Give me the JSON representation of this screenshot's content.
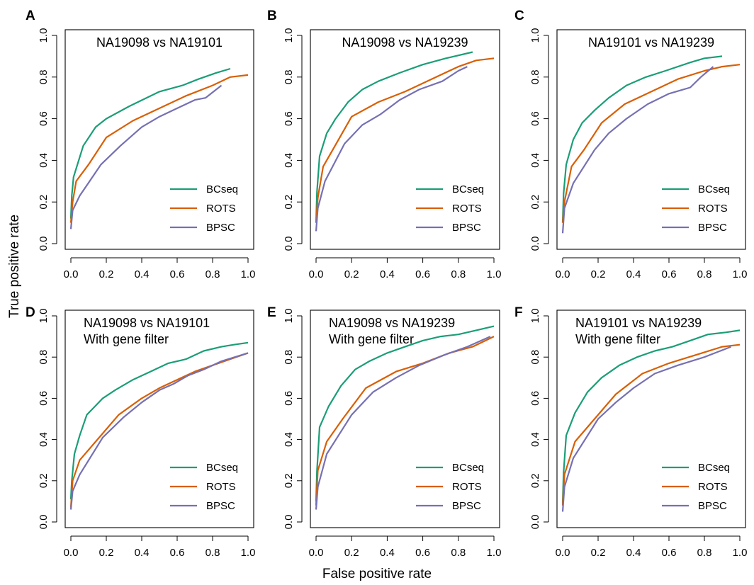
{
  "figure": {
    "xlabel": "False positive rate",
    "ylabel": "True positive rate"
  },
  "colors": {
    "BCseq": "#1b9e77",
    "ROTS": "#d95f02",
    "BPSC": "#7570b3"
  },
  "chart_data": [
    {
      "type": "line",
      "panel": "A",
      "title": [
        "NA19098 vs NA19101"
      ],
      "xlim": [
        0,
        1
      ],
      "ylim": [
        0,
        1
      ],
      "xticks": [
        "0.0",
        "0.2",
        "0.4",
        "0.6",
        "0.8",
        "1.0"
      ],
      "yticks": [
        "0.0",
        "0.2",
        "0.4",
        "0.6",
        "0.8",
        "1.0"
      ],
      "legend_position": "bottom-right",
      "series": [
        {
          "name": "BCseq",
          "x": [
            0,
            0.005,
            0.015,
            0.07,
            0.14,
            0.2,
            0.33,
            0.5,
            0.63,
            0.72,
            0.82,
            0.9
          ],
          "y": [
            0.12,
            0.23,
            0.32,
            0.47,
            0.56,
            0.6,
            0.66,
            0.73,
            0.76,
            0.79,
            0.82,
            0.84
          ]
        },
        {
          "name": "ROTS",
          "x": [
            0,
            0.01,
            0.03,
            0.1,
            0.2,
            0.35,
            0.5,
            0.65,
            0.8,
            0.9,
            1.0
          ],
          "y": [
            0.1,
            0.2,
            0.3,
            0.38,
            0.51,
            0.59,
            0.65,
            0.71,
            0.76,
            0.8,
            0.81
          ]
        },
        {
          "name": "BPSC",
          "x": [
            0,
            0.01,
            0.05,
            0.17,
            0.28,
            0.4,
            0.5,
            0.6,
            0.7,
            0.76,
            0.85
          ],
          "y": [
            0.07,
            0.16,
            0.23,
            0.38,
            0.47,
            0.56,
            0.61,
            0.65,
            0.69,
            0.7,
            0.76
          ]
        }
      ]
    },
    {
      "type": "line",
      "panel": "B",
      "title": [
        "NA19098 vs NA19239"
      ],
      "xlim": [
        0,
        1
      ],
      "ylim": [
        0,
        1
      ],
      "xticks": [
        "0.0",
        "0.2",
        "0.4",
        "0.6",
        "0.8",
        "1.0"
      ],
      "yticks": [
        "0.0",
        "0.2",
        "0.4",
        "0.6",
        "0.8",
        "1.0"
      ],
      "legend_position": "bottom-right",
      "series": [
        {
          "name": "BCseq",
          "x": [
            0,
            0.005,
            0.02,
            0.06,
            0.11,
            0.18,
            0.26,
            0.35,
            0.47,
            0.6,
            0.73,
            0.88
          ],
          "y": [
            0.1,
            0.25,
            0.42,
            0.53,
            0.6,
            0.68,
            0.74,
            0.78,
            0.82,
            0.86,
            0.89,
            0.92
          ]
        },
        {
          "name": "ROTS",
          "x": [
            0,
            0.01,
            0.04,
            0.1,
            0.2,
            0.35,
            0.5,
            0.65,
            0.8,
            0.9,
            1.0
          ],
          "y": [
            0.1,
            0.22,
            0.37,
            0.46,
            0.61,
            0.68,
            0.73,
            0.79,
            0.85,
            0.88,
            0.89
          ]
        },
        {
          "name": "BPSC",
          "x": [
            0,
            0.01,
            0.05,
            0.16,
            0.26,
            0.36,
            0.47,
            0.58,
            0.71,
            0.8,
            0.85
          ],
          "y": [
            0.06,
            0.17,
            0.3,
            0.48,
            0.57,
            0.62,
            0.69,
            0.74,
            0.78,
            0.83,
            0.85
          ]
        }
      ]
    },
    {
      "type": "line",
      "panel": "C",
      "title": [
        "NA19101 vs NA19239"
      ],
      "xlim": [
        0,
        1
      ],
      "ylim": [
        0,
        1
      ],
      "xticks": [
        "0.0",
        "0.2",
        "0.4",
        "0.6",
        "0.8",
        "1.0"
      ],
      "yticks": [
        "0.0",
        "0.2",
        "0.4",
        "0.6",
        "0.8",
        "1.0"
      ],
      "legend_position": "bottom-right",
      "series": [
        {
          "name": "BCseq",
          "x": [
            0,
            0.005,
            0.02,
            0.06,
            0.11,
            0.18,
            0.26,
            0.36,
            0.47,
            0.58,
            0.72,
            0.8,
            0.9
          ],
          "y": [
            0.1,
            0.24,
            0.38,
            0.5,
            0.58,
            0.64,
            0.7,
            0.76,
            0.8,
            0.83,
            0.87,
            0.89,
            0.9
          ]
        },
        {
          "name": "ROTS",
          "x": [
            0,
            0.01,
            0.05,
            0.12,
            0.22,
            0.35,
            0.5,
            0.65,
            0.8,
            0.9,
            1.0
          ],
          "y": [
            0.1,
            0.2,
            0.37,
            0.45,
            0.58,
            0.67,
            0.73,
            0.79,
            0.83,
            0.85,
            0.86
          ]
        },
        {
          "name": "BPSC",
          "x": [
            0,
            0.01,
            0.06,
            0.18,
            0.26,
            0.36,
            0.48,
            0.6,
            0.72,
            0.78,
            0.85
          ],
          "y": [
            0.05,
            0.17,
            0.29,
            0.45,
            0.53,
            0.6,
            0.67,
            0.72,
            0.75,
            0.8,
            0.85
          ]
        }
      ]
    },
    {
      "type": "line",
      "panel": "D",
      "title": [
        "NA19098 vs NA19101",
        "With gene filter"
      ],
      "xlim": [
        0,
        1
      ],
      "ylim": [
        0,
        1
      ],
      "xticks": [
        "0.0",
        "0.2",
        "0.4",
        "0.6",
        "0.8",
        "1.0"
      ],
      "yticks": [
        "0.0",
        "0.2",
        "0.4",
        "0.6",
        "0.8",
        "1.0"
      ],
      "legend_position": "bottom-right",
      "series": [
        {
          "name": "BCseq",
          "x": [
            0,
            0.005,
            0.02,
            0.05,
            0.09,
            0.18,
            0.25,
            0.35,
            0.45,
            0.55,
            0.65,
            0.75,
            0.85,
            0.92,
            1.0
          ],
          "y": [
            0.11,
            0.2,
            0.33,
            0.42,
            0.52,
            0.6,
            0.64,
            0.69,
            0.73,
            0.77,
            0.79,
            0.83,
            0.85,
            0.86,
            0.87
          ]
        },
        {
          "name": "ROTS",
          "x": [
            0,
            0.01,
            0.05,
            0.15,
            0.27,
            0.4,
            0.5,
            0.6,
            0.7,
            0.8,
            0.9,
            1.0
          ],
          "y": [
            0.07,
            0.2,
            0.3,
            0.4,
            0.52,
            0.6,
            0.65,
            0.69,
            0.73,
            0.76,
            0.79,
            0.82
          ]
        },
        {
          "name": "BPSC",
          "x": [
            0,
            0.01,
            0.05,
            0.18,
            0.3,
            0.4,
            0.5,
            0.58,
            0.66,
            0.75,
            0.85,
            1.0
          ],
          "y": [
            0.06,
            0.15,
            0.23,
            0.41,
            0.51,
            0.58,
            0.64,
            0.67,
            0.71,
            0.74,
            0.78,
            0.82
          ]
        }
      ]
    },
    {
      "type": "line",
      "panel": "E",
      "title": [
        "NA19098 vs NA19239",
        "With gene filter"
      ],
      "xlim": [
        0,
        1
      ],
      "ylim": [
        0,
        1
      ],
      "xticks": [
        "0.0",
        "0.2",
        "0.4",
        "0.6",
        "0.8",
        "1.0"
      ],
      "yticks": [
        "0.0",
        "0.2",
        "0.4",
        "0.6",
        "0.8",
        "1.0"
      ],
      "legend_position": "bottom-right",
      "series": [
        {
          "name": "BCseq",
          "x": [
            0,
            0.005,
            0.02,
            0.07,
            0.14,
            0.22,
            0.3,
            0.4,
            0.5,
            0.6,
            0.7,
            0.8,
            0.9,
            1.0
          ],
          "y": [
            0.1,
            0.25,
            0.46,
            0.56,
            0.66,
            0.74,
            0.78,
            0.82,
            0.85,
            0.88,
            0.9,
            0.91,
            0.93,
            0.95
          ]
        },
        {
          "name": "ROTS",
          "x": [
            0,
            0.01,
            0.06,
            0.15,
            0.28,
            0.45,
            0.6,
            0.75,
            0.88,
            1.0
          ],
          "y": [
            0.08,
            0.25,
            0.39,
            0.5,
            0.65,
            0.73,
            0.77,
            0.82,
            0.85,
            0.9
          ]
        },
        {
          "name": "BPSC",
          "x": [
            0,
            0.01,
            0.06,
            0.2,
            0.32,
            0.45,
            0.58,
            0.72,
            0.85,
            0.98
          ],
          "y": [
            0.06,
            0.17,
            0.33,
            0.52,
            0.63,
            0.7,
            0.76,
            0.81,
            0.85,
            0.9
          ]
        }
      ]
    },
    {
      "type": "line",
      "panel": "F",
      "title": [
        "NA19101 vs NA19239",
        "With gene filter"
      ],
      "xlim": [
        0,
        1
      ],
      "ylim": [
        0,
        1
      ],
      "xticks": [
        "0.0",
        "0.2",
        "0.4",
        "0.6",
        "0.8",
        "1.0"
      ],
      "yticks": [
        "0.0",
        "0.2",
        "0.4",
        "0.6",
        "0.8",
        "1.0"
      ],
      "legend_position": "bottom-right",
      "series": [
        {
          "name": "BCseq",
          "x": [
            0,
            0.005,
            0.02,
            0.07,
            0.14,
            0.22,
            0.32,
            0.42,
            0.52,
            0.62,
            0.72,
            0.82,
            0.92,
            1.0
          ],
          "y": [
            0.09,
            0.24,
            0.42,
            0.53,
            0.63,
            0.7,
            0.76,
            0.8,
            0.83,
            0.85,
            0.88,
            0.91,
            0.92,
            0.93
          ]
        },
        {
          "name": "ROTS",
          "x": [
            0,
            0.01,
            0.07,
            0.18,
            0.3,
            0.45,
            0.6,
            0.75,
            0.9,
            1.0
          ],
          "y": [
            0.08,
            0.23,
            0.39,
            0.5,
            0.62,
            0.72,
            0.77,
            0.81,
            0.85,
            0.86
          ]
        },
        {
          "name": "BPSC",
          "x": [
            0,
            0.01,
            0.06,
            0.2,
            0.3,
            0.4,
            0.52,
            0.65,
            0.8,
            0.95
          ],
          "y": [
            0.05,
            0.17,
            0.31,
            0.5,
            0.58,
            0.65,
            0.72,
            0.76,
            0.8,
            0.85
          ]
        }
      ]
    }
  ]
}
